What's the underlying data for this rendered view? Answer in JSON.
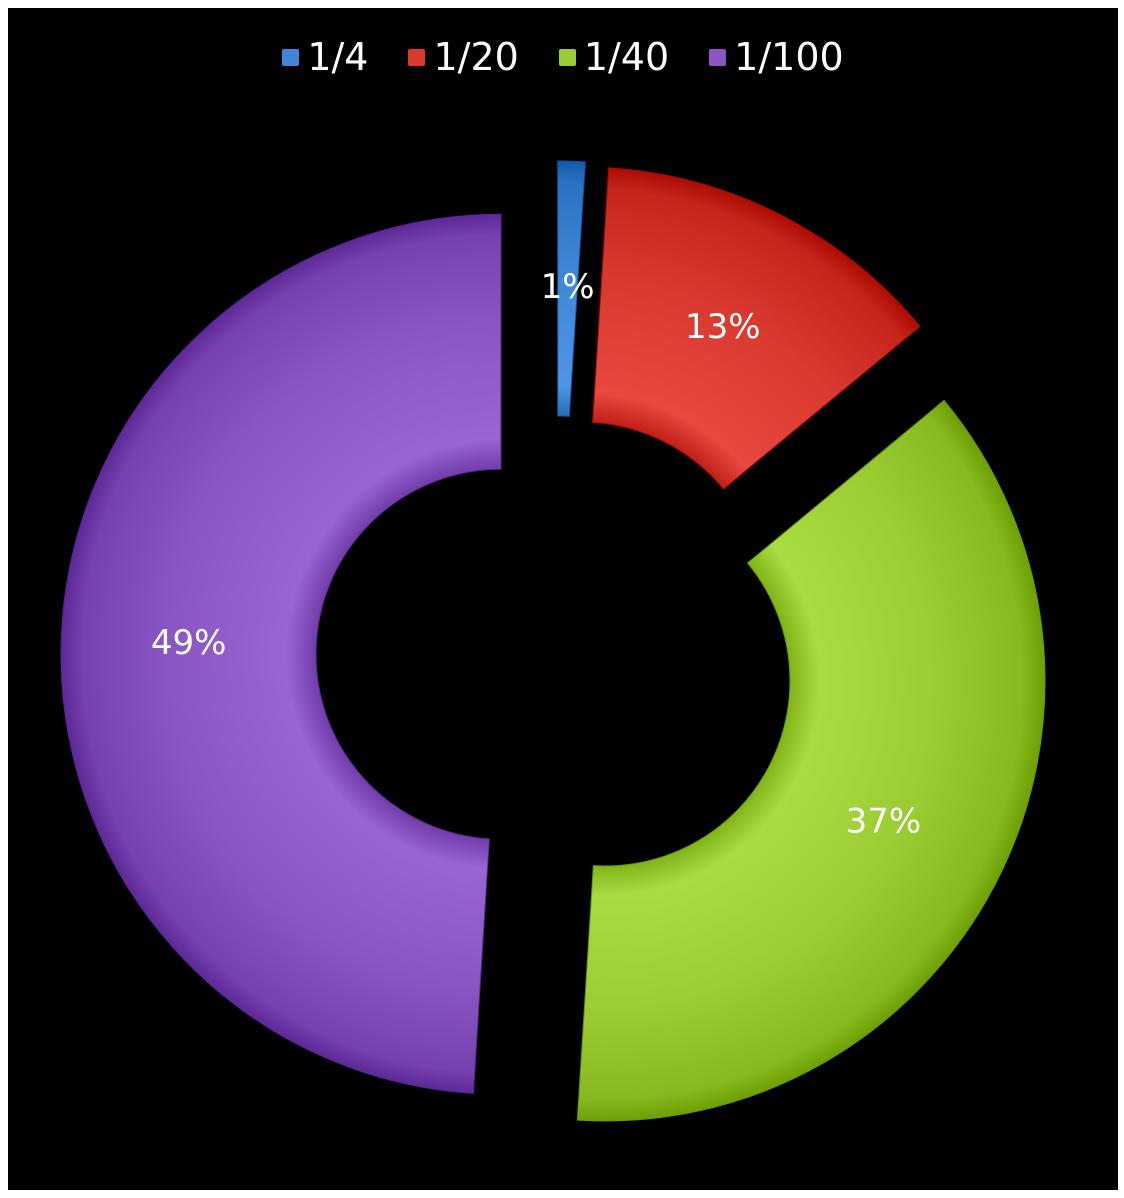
{
  "chart_data": {
    "type": "pie",
    "variant": "exploded-doughnut",
    "legend_position": "top",
    "categories": [
      "1/4",
      "1/20",
      "1/40",
      "1/100"
    ],
    "values": [
      1,
      13,
      37,
      49
    ],
    "labels": [
      "1%",
      "13%",
      "37%",
      "49%"
    ],
    "colors": [
      "#3f86d6",
      "#d9392f",
      "#9acd32",
      "#8a56c4"
    ]
  }
}
